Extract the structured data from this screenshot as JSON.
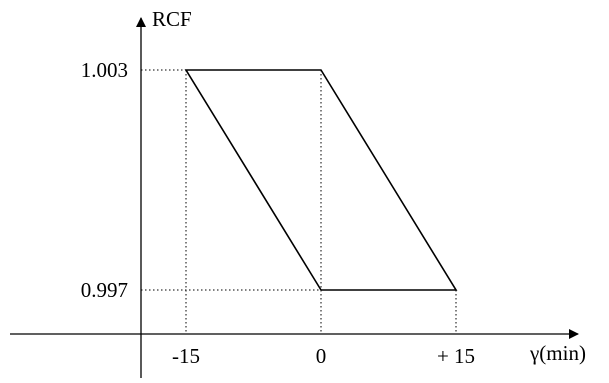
{
  "diagram": {
    "y_axis_label": "RCF",
    "x_axis_label": "γ(min)",
    "y_ticks": [
      {
        "value": 1.003,
        "label": "1.003"
      },
      {
        "value": 0.997,
        "label": "0.997"
      }
    ],
    "x_ticks": [
      {
        "value": -15,
        "label": "-15"
      },
      {
        "value": 0,
        "label": "0"
      },
      {
        "value": 15,
        "label": "+ 15"
      }
    ],
    "parallelogram": [
      {
        "x": -15,
        "y": 1.003
      },
      {
        "x": 0,
        "y": 1.003
      },
      {
        "x": 15,
        "y": 0.997
      },
      {
        "x": 0,
        "y": 0.997
      }
    ],
    "guides": "dotted",
    "line_color": "#000000"
  }
}
